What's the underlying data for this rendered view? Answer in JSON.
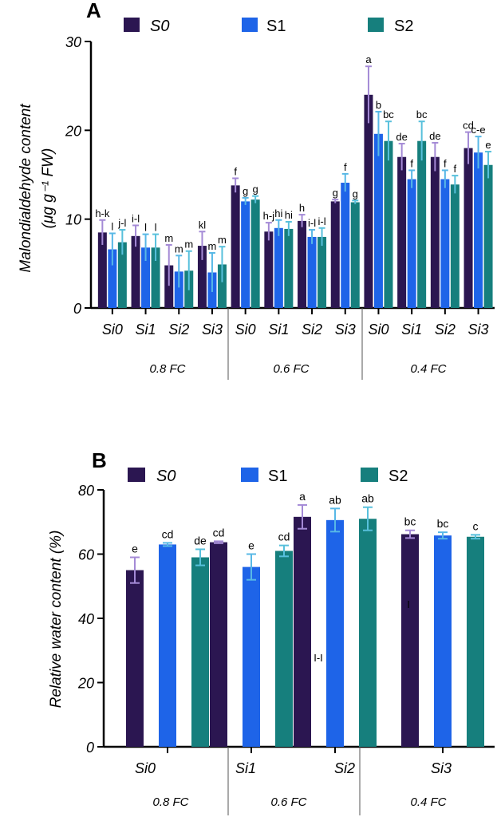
{
  "colors": {
    "S0": "#2b1651",
    "S1": "#1e64e8",
    "S2": "#167f7d",
    "err_S0": "#a48ad6",
    "err_S1": "#58b8e6",
    "err_S2": "#58c0dc",
    "panel_letter": "#e21b1b"
  },
  "chart_data": [
    {
      "type": "bar",
      "panel": "A",
      "legend": [
        "S0",
        "S1",
        "S2"
      ],
      "legend_placement": "top",
      "ylabel_line1": "Malondialdehyde content",
      "ylabel_line2": "(μg g⁻¹ FW)",
      "ylim": [
        0,
        30
      ],
      "yticks": [
        "0",
        "10",
        "20",
        "30"
      ],
      "categories": [
        "Si0",
        "Si1",
        "Si2",
        "Si3",
        "Si0",
        "Si1",
        "Si2",
        "Si3",
        "Si0",
        "Si1",
        "Si2",
        "Si3"
      ],
      "groups": [
        "0.8 FC",
        "0.6 FC",
        "0.4 FC"
      ],
      "series": [
        {
          "name": "S0",
          "values": [
            8.5,
            8.1,
            4.8,
            7.0,
            13.8,
            8.6,
            9.8,
            12.0,
            24.0,
            17.0,
            17.0,
            18.0
          ],
          "errors": [
            1.4,
            1.2,
            2.3,
            1.6,
            0.8,
            1.0,
            0.7,
            0.2,
            3.2,
            1.5,
            1.6,
            1.8
          ]
        },
        {
          "name": "S1",
          "values": [
            6.6,
            6.8,
            4.1,
            4.0,
            12.0,
            9.0,
            8.0,
            14.1,
            19.6,
            14.5,
            14.5,
            17.5
          ],
          "errors": [
            1.8,
            1.5,
            1.8,
            2.2,
            0.4,
            0.9,
            0.8,
            1.0,
            2.5,
            1.0,
            1.0,
            1.8
          ]
        },
        {
          "name": "S2",
          "values": [
            7.4,
            6.8,
            4.2,
            4.9,
            12.2,
            8.9,
            8.0,
            11.9,
            18.8,
            18.8,
            13.9,
            16.1
          ],
          "errors": [
            1.4,
            1.5,
            2.2,
            2.0,
            0.4,
            0.8,
            1.0,
            0.2,
            2.2,
            2.2,
            1.0,
            1.5
          ]
        }
      ],
      "labels": [
        [
          "h-k",
          "l",
          "j-l"
        ],
        [
          "i-l",
          "l",
          "l"
        ],
        [
          "m",
          "m",
          "m"
        ],
        [
          "kl",
          "m",
          "m"
        ],
        [
          "f",
          "g",
          "g"
        ],
        [
          "h-j",
          "hi",
          "hi"
        ],
        [
          "h",
          "i-l",
          "i-l"
        ],
        [
          "g",
          "f",
          "g"
        ],
        [
          "a",
          "b",
          "bc"
        ],
        [
          "de",
          "f",
          "bc"
        ],
        [
          "de",
          "f",
          "f"
        ],
        [
          "cd",
          "c-e",
          "e"
        ]
      ]
    },
    {
      "type": "bar",
      "panel": "B",
      "legend": [
        "S0",
        "S1",
        "S2"
      ],
      "legend_placement": "top",
      "ylabel": "Relative water content (%)",
      "ylim": [
        0,
        80
      ],
      "yticks": [
        "0",
        "20",
        "40",
        "60",
        "80"
      ],
      "categories": [
        "Si0",
        "Si1",
        "Si2",
        "Si3"
      ],
      "groups": [
        "0.8 FC",
        "0.6 FC",
        "0.4 FC"
      ],
      "series": [
        {
          "name": "S0",
          "values": [
            55.0,
            63.7,
            71.6,
            66.2
          ],
          "errors": [
            4.0,
            0.3,
            3.7,
            1.2
          ]
        },
        {
          "name": "S1",
          "values": [
            63.0,
            56.0,
            70.6,
            65.8
          ],
          "errors": [
            0.5,
            4.0,
            3.6,
            1.0
          ]
        },
        {
          "name": "S2",
          "values": [
            59.0,
            61.0,
            71.0,
            65.4
          ],
          "errors": [
            2.5,
            1.7,
            3.6,
            0.6
          ]
        }
      ],
      "labels": [
        [
          "e",
          "cd",
          "de"
        ],
        [
          "cd",
          "e",
          "cd"
        ],
        [
          "a",
          "ab",
          "ab"
        ],
        [
          "bc",
          "bc",
          "c"
        ]
      ],
      "stray_marks": [
        "I-I",
        "I"
      ]
    }
  ]
}
